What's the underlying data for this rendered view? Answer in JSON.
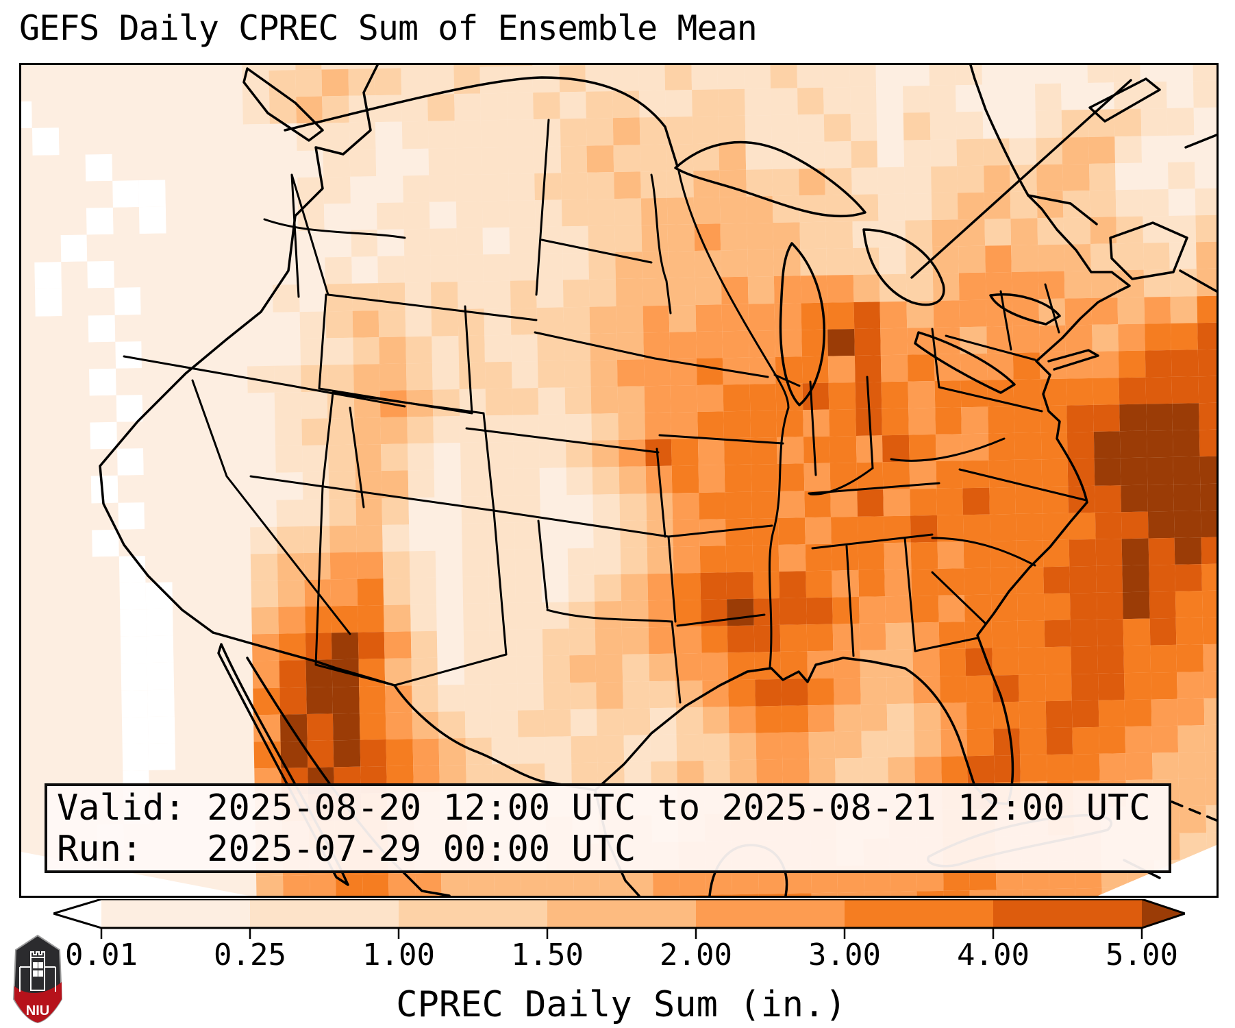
{
  "title": "GEFS Daily CPREC Sum of Ensemble Mean",
  "info_box": {
    "valid_line": "Valid: 2025-08-20 12:00 UTC to 2025-08-21 12:00 UTC",
    "run_line": "Run:   2025-07-29 00:00 UTC"
  },
  "colorbar": {
    "label": "CPREC Daily Sum (in.)",
    "tick_labels": [
      "0.01",
      "0.25",
      "1.00",
      "1.50",
      "2.00",
      "3.00",
      "4.00",
      "5.00"
    ],
    "boundaries_in": [
      0.01,
      0.25,
      1.0,
      1.5,
      2.0,
      3.0,
      4.0,
      5.0
    ],
    "extend": "both",
    "under_color": "#ffffff",
    "segment_colors": [
      "#fdeee1",
      "#fde3c9",
      "#fdd2a7",
      "#fdbb80",
      "#fd9c51",
      "#f57d21",
      "#dd5c0d"
    ],
    "over_color": "#9b3c06",
    "outline_color": "#000000"
  },
  "logo": {
    "text": "NIU",
    "shield_top_color": "#2b2b2e",
    "shield_bottom_color": "#b6121b"
  },
  "chart_data": {
    "type": "heatmap",
    "title": "GEFS Daily CPREC Sum of Ensemble Mean",
    "colorbar_label": "CPREC Daily Sum (in.)",
    "valid_period": "2025-08-20 12:00 UTC to 2025-08-21 12:00 UTC",
    "run_time": "2025-07-29 00:00 UTC",
    "level_boundaries_in": [
      0.01,
      0.25,
      1.0,
      1.5,
      2.0,
      3.0,
      4.0,
      5.0
    ],
    "extend": "both",
    "palette": [
      "#ffffff",
      "#fdeee1",
      "#fde3c9",
      "#fdd2a7",
      "#fdbb80",
      "#fd9c51",
      "#f57d21",
      "#dd5c0d",
      "#9b3c06"
    ],
    "grid_cols": 48,
    "grid_rows": 33,
    "legend_note": "each digit 0-8 indexes palette; 0 = <0.01 in, 8 = >5.00 in",
    "rows": [
      "111111111122322222333222223232221122112112112222",
      "111111111123343322322232223222322211221111221122",
      "101111111123432223222323322332232212211121122122",
      "110111111111222122222233433332223213221123332211",
      "111101111111122112222234333342222312233234421111",
      "111110011111221122222333433443343222334344311211",
      "111101011111211221222233344444333322344343322122",
      "111011111111112122212223344544433223443433432232",
      "110101111111121222222223444444433323445444333243",
      "110110111112133323223233444454555433455554443343",
      "111101111111234323323334454555566754555545545466",
      "111110111111223432322334455555568755545555456676",
      "111101111122334432332334555655665756555655567776",
      "111110111112234543233234455566676765666666677777",
      "111101111112334432222223455666656765656667788877",
      "111110111112234321222234576566566576556667888877",
      "111101111111234421222123456566656665666667888887",
      "111110111112234311222112345666565756676667788887",
      "111101111123344211222112345566656667666666778887",
      "111110111134455321222122345666566656566667787877",
      "111110011134556321222123456776765656666677787766",
      "111110011145666421222234456787776556566667787666",
      "111110011156787531222334455677665545666677767666",
      "111110011157886431222344345566655445676667766656",
      "111110011167886532222334334567765445667667766556",
      "111110011158786543223323323456654434566677665545",
      "111110011168787654322233223345544334567676655444",
      "111110111157877654333233234345543345677666554444",
      "111110111146776543333334334455543445676565544443",
      "111101111145666544333434434555554455665565444433",
      "111011111145566544433444445555554555665555444333",
      "111111111145566554444444455555555555665555443333",
      "111111111155666655444455556666655556655555443333"
    ]
  }
}
